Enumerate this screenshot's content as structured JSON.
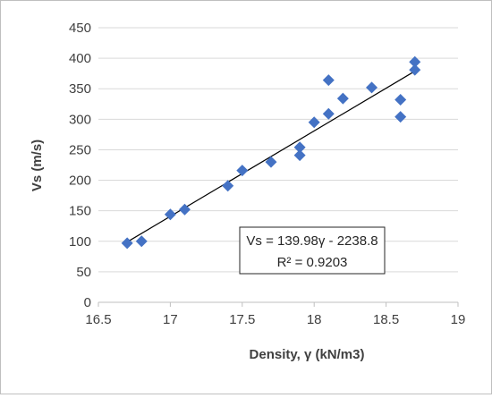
{
  "chart_data": {
    "type": "scatter",
    "title": "",
    "xlabel": "Density, γ (kN/m3)",
    "ylabel": "Vs (m/s)",
    "xlim": [
      16.5,
      19
    ],
    "ylim": [
      0,
      450
    ],
    "x_ticks": [
      "16.5",
      "17",
      "17.5",
      "18",
      "18.5",
      "19"
    ],
    "y_ticks": [
      "0",
      "50",
      "100",
      "150",
      "200",
      "250",
      "300",
      "350",
      "400",
      "450"
    ],
    "grid": "horizontal",
    "marker": "diamond",
    "marker_color": "#4472c4",
    "trendline": {
      "type": "linear",
      "slope": 139.98,
      "intercept": -2238.8,
      "equation": "Vs = 139.98γ - 2238.8",
      "r_squared": "R² = 0.9203",
      "color": "#000000"
    },
    "points": [
      {
        "x": 16.7,
        "y": 97
      },
      {
        "x": 16.8,
        "y": 100
      },
      {
        "x": 17.0,
        "y": 144
      },
      {
        "x": 17.1,
        "y": 152
      },
      {
        "x": 17.4,
        "y": 191
      },
      {
        "x": 17.5,
        "y": 216
      },
      {
        "x": 17.7,
        "y": 230
      },
      {
        "x": 17.9,
        "y": 241
      },
      {
        "x": 17.9,
        "y": 254
      },
      {
        "x": 18.0,
        "y": 295
      },
      {
        "x": 18.1,
        "y": 309
      },
      {
        "x": 18.1,
        "y": 364
      },
      {
        "x": 18.2,
        "y": 334
      },
      {
        "x": 18.4,
        "y": 352
      },
      {
        "x": 18.6,
        "y": 304
      },
      {
        "x": 18.6,
        "y": 332
      },
      {
        "x": 18.7,
        "y": 381
      },
      {
        "x": 18.7,
        "y": 394
      }
    ]
  }
}
